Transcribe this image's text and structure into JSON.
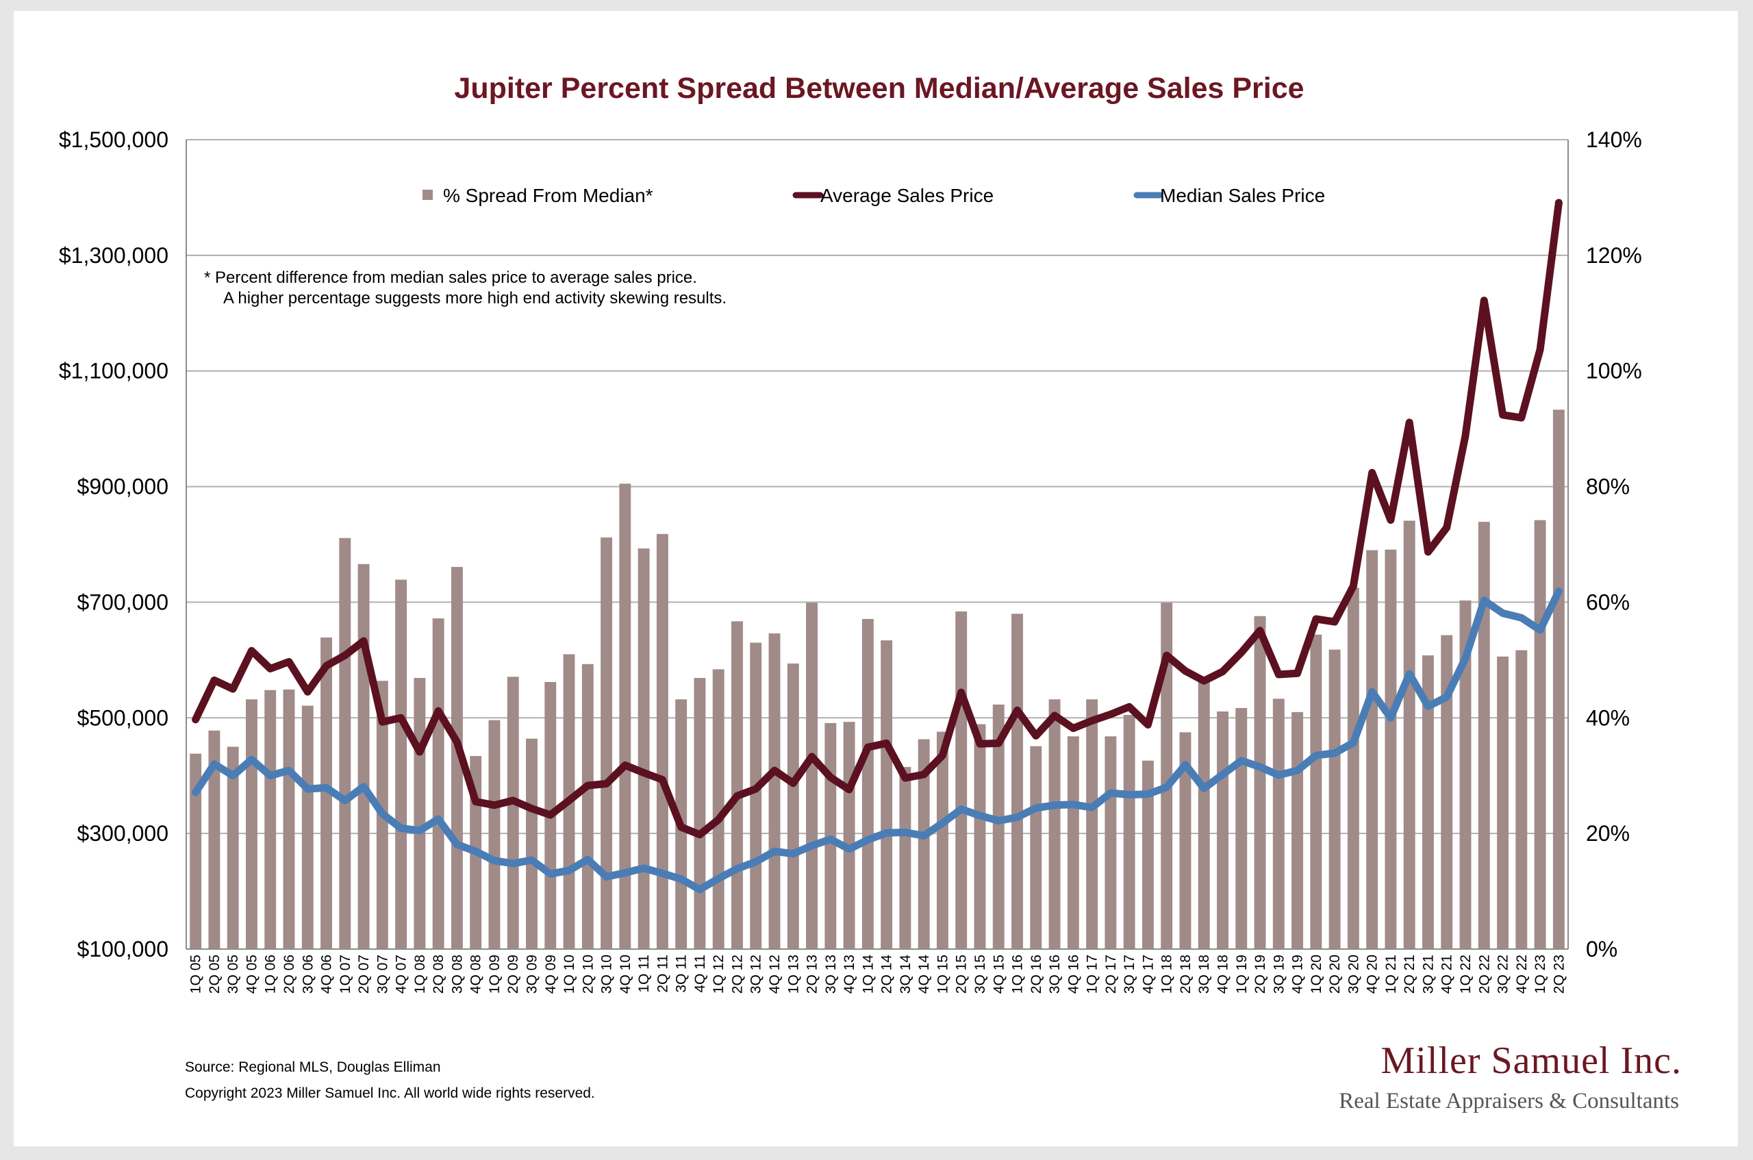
{
  "chart_data": {
    "type": "bar",
    "title": "Jupiter Percent Spread Between Median/Average Sales Price",
    "categories": [
      "1Q 05",
      "2Q 05",
      "3Q 05",
      "4Q 05",
      "1Q 06",
      "2Q 06",
      "3Q 06",
      "4Q 06",
      "1Q 07",
      "2Q 07",
      "3Q 07",
      "4Q 07",
      "1Q 08",
      "2Q 08",
      "3Q 08",
      "4Q 08",
      "1Q 09",
      "2Q 09",
      "3Q 09",
      "4Q 09",
      "1Q 10",
      "2Q 10",
      "3Q 10",
      "4Q 10",
      "1Q 11",
      "2Q 11",
      "3Q 11",
      "4Q 11",
      "1Q 12",
      "2Q 12",
      "3Q 12",
      "4Q 12",
      "1Q 13",
      "2Q 13",
      "3Q 13",
      "4Q 13",
      "1Q 14",
      "2Q 14",
      "3Q 14",
      "4Q 14",
      "1Q 15",
      "2Q 15",
      "3Q 15",
      "4Q 15",
      "1Q 16",
      "2Q 16",
      "3Q 16",
      "4Q 16",
      "1Q 17",
      "2Q 17",
      "3Q 17",
      "4Q 17",
      "1Q 18",
      "2Q 18",
      "3Q 18",
      "4Q 18",
      "1Q 19",
      "2Q 19",
      "3Q 19",
      "4Q 19",
      "1Q 20",
      "2Q 20",
      "3Q 20",
      "4Q 20",
      "1Q 21",
      "2Q 21",
      "3Q 21",
      "4Q 21",
      "1Q 22",
      "2Q 22",
      "3Q 22",
      "4Q 22",
      "1Q 23",
      "2Q 23"
    ],
    "series": [
      {
        "name": "% Spread From Median*",
        "axis": "right",
        "kind": "bar",
        "color": "#a08b89",
        "values": [
          33.8,
          37.8,
          35.0,
          43.2,
          44.8,
          44.9,
          42.1,
          53.9,
          71.1,
          66.6,
          46.4,
          63.9,
          46.9,
          57.2,
          66.1,
          33.4,
          39.6,
          47.1,
          36.4,
          46.2,
          51.0,
          49.3,
          71.2,
          80.5,
          69.3,
          71.8,
          43.2,
          46.9,
          48.4,
          56.7,
          53.0,
          54.6,
          49.4,
          59.9,
          39.1,
          39.3,
          57.1,
          53.4,
          31.5,
          36.3,
          37.6,
          58.4,
          38.9,
          42.3,
          58.0,
          35.1,
          43.2,
          36.8,
          43.2,
          36.8,
          40.5,
          32.6,
          59.9,
          37.5,
          46.6,
          41.1,
          41.7,
          57.6,
          43.3,
          41.0,
          54.4,
          51.8,
          62.5,
          69.0,
          69.1,
          74.1,
          50.8,
          54.3,
          60.3,
          73.9,
          50.6,
          51.7,
          74.2,
          93.3
        ]
      },
      {
        "name": "Average Sales Price",
        "axis": "left",
        "kind": "line",
        "color": "#5c1120",
        "values": [
          497000,
          565000,
          550000,
          616000,
          585000,
          597000,
          545000,
          590000,
          608000,
          633000,
          493000,
          500000,
          441000,
          512000,
          458000,
          355000,
          349000,
          357000,
          343000,
          332000,
          357000,
          383000,
          386000,
          418000,
          405000,
          393000,
          311000,
          298000,
          324000,
          365000,
          377000,
          409000,
          387000,
          433000,
          397000,
          376000,
          449000,
          456000,
          396000,
          402000,
          435000,
          544000,
          455000,
          456000,
          513000,
          469000,
          504000,
          482000,
          495000,
          506000,
          519000,
          488000,
          608000,
          581000,
          564000,
          580000,
          613000,
          651000,
          575000,
          577000,
          671000,
          666000,
          728000,
          924000,
          842000,
          1011000,
          787000,
          829000,
          988000,
          1222000,
          1024000,
          1019000,
          1137000,
          1391000
        ]
      },
      {
        "name": "Median Sales Price",
        "axis": "left",
        "kind": "line",
        "color": "#4a7db5",
        "values": [
          371000,
          420000,
          400000,
          428000,
          400000,
          409000,
          377000,
          379000,
          357000,
          381000,
          334000,
          309000,
          305000,
          325000,
          281000,
          269000,
          253000,
          248000,
          254000,
          230000,
          236000,
          255000,
          225000,
          232000,
          240000,
          231000,
          221000,
          203000,
          222000,
          239000,
          251000,
          269000,
          265000,
          279000,
          290000,
          273000,
          289000,
          301000,
          302000,
          296000,
          318000,
          342000,
          331000,
          322000,
          328000,
          344000,
          349000,
          350000,
          345000,
          370000,
          367000,
          368000,
          380000,
          419000,
          378000,
          402000,
          426000,
          415000,
          401000,
          409000,
          435000,
          439000,
          457000,
          545000,
          500000,
          576000,
          520000,
          536000,
          603000,
          703000,
          681000,
          673000,
          652000,
          719000
        ]
      }
    ],
    "left_axis": {
      "ylim": [
        100000,
        1500000
      ],
      "ticks": [
        "$100,000",
        "$300,000",
        "$500,000",
        "$700,000",
        "$900,000",
        "$1,100,000",
        "$1,300,000",
        "$1,500,000"
      ]
    },
    "right_axis": {
      "ylim": [
        0,
        140
      ],
      "ticks": [
        "0%",
        "20%",
        "40%",
        "60%",
        "80%",
        "100%",
        "120%",
        "140%"
      ]
    },
    "grid": true,
    "legend_position": "top"
  },
  "note": {
    "line1": "*  Percent difference from median sales price to average sales price.",
    "line2": "A higher percentage suggests more high end activity skewing results."
  },
  "footer": {
    "source": "Source: Regional MLS, Douglas Elliman",
    "copyright": "Copyright 2023 Miller Samuel Inc.  All world wide rights reserved."
  },
  "logo": {
    "name": "Miller Samuel Inc.",
    "tagline": "Real Estate Appraisers & Consultants"
  }
}
